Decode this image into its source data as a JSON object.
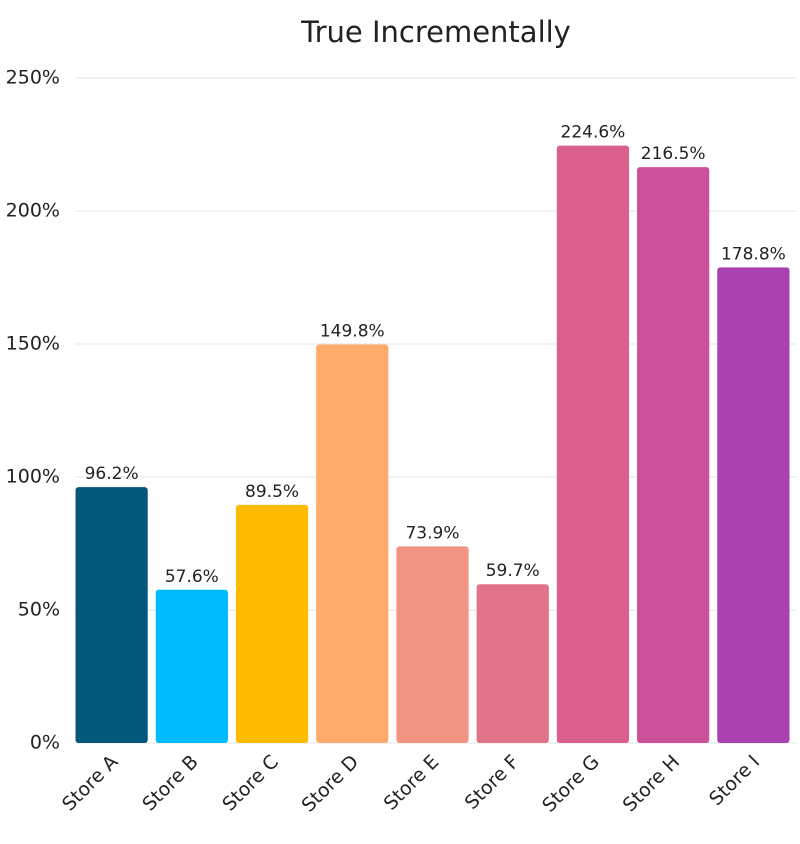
{
  "chart_data": {
    "type": "bar",
    "title": "True Incrementally",
    "categories": [
      "Store A",
      "Store B",
      "Store C",
      "Store D",
      "Store E",
      "Store F",
      "Store G",
      "Store H",
      "Store I"
    ],
    "values": [
      96.2,
      57.6,
      89.5,
      149.8,
      73.9,
      59.7,
      224.6,
      216.5,
      178.8
    ],
    "value_labels": [
      "96.2%",
      "57.6%",
      "89.5%",
      "149.8%",
      "73.9%",
      "59.7%",
      "224.6%",
      "216.5%",
      "178.8%"
    ],
    "colors": [
      "#02587a",
      "#00bbff",
      "#ffbb00",
      "#ffab6b",
      "#f29484",
      "#e07388",
      "#db5f8c",
      "#cb519b",
      "#a942b0"
    ],
    "ylim": [
      0,
      250
    ],
    "yticks": [
      {
        "value": 0,
        "label": "0%"
      },
      {
        "value": 50,
        "label": "50%"
      },
      {
        "value": 100,
        "label": "100%"
      },
      {
        "value": 150,
        "label": "150%"
      },
      {
        "value": 200,
        "label": "200%"
      },
      {
        "value": 250,
        "label": "250%"
      }
    ],
    "grid": true
  }
}
